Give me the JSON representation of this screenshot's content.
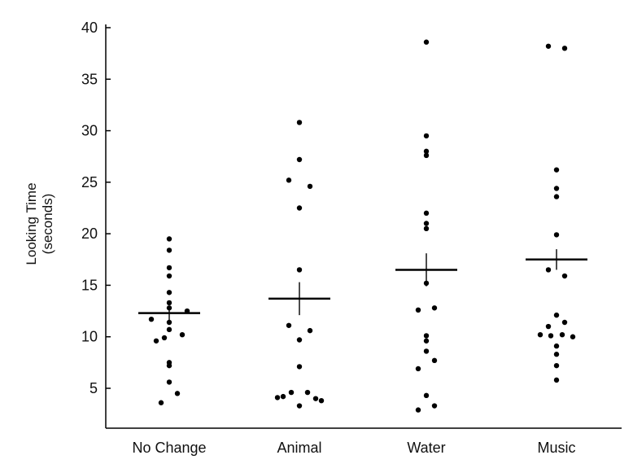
{
  "chart_data": {
    "type": "scatter",
    "title": "",
    "ylabel": "Looking Time",
    "ylabel_unit": "(seconds)",
    "xlabel": "",
    "categories": [
      "No Change",
      "Animal",
      "Water",
      "Music"
    ],
    "ylim": [
      1,
      40.5
    ],
    "yticks": [
      5,
      10,
      15,
      20,
      25,
      30,
      35,
      40
    ],
    "ytick_labels": [
      "5",
      "10",
      "15",
      "20",
      "25",
      "30",
      "35",
      "40"
    ],
    "grid": false,
    "colors": {
      "point": "#000000",
      "axis": "#000000"
    },
    "groups": [
      {
        "category": "No Change",
        "mean": 12.3,
        "sem": 0.7,
        "points": [
          {
            "x_offset": 0.0,
            "y": 19.5
          },
          {
            "x_offset": 0.0,
            "y": 18.4
          },
          {
            "x_offset": 0.0,
            "y": 16.7
          },
          {
            "x_offset": 0.0,
            "y": 15.9
          },
          {
            "x_offset": 0.0,
            "y": 14.3
          },
          {
            "x_offset": 0.0,
            "y": 13.3
          },
          {
            "x_offset": 0.0,
            "y": 12.8
          },
          {
            "x_offset": 0.22,
            "y": 12.5
          },
          {
            "x_offset": -0.22,
            "y": 11.7
          },
          {
            "x_offset": 0.0,
            "y": 11.4
          },
          {
            "x_offset": 0.0,
            "y": 10.7
          },
          {
            "x_offset": 0.16,
            "y": 10.2
          },
          {
            "x_offset": -0.06,
            "y": 9.9
          },
          {
            "x_offset": -0.16,
            "y": 9.6
          },
          {
            "x_offset": 0.0,
            "y": 7.5
          },
          {
            "x_offset": 0.0,
            "y": 7.2
          },
          {
            "x_offset": 0.0,
            "y": 5.6
          },
          {
            "x_offset": 0.1,
            "y": 4.5
          },
          {
            "x_offset": -0.1,
            "y": 3.6
          }
        ]
      },
      {
        "category": "Animal",
        "mean": 13.7,
        "sem": 1.6,
        "points": [
          {
            "x_offset": 0.0,
            "y": 30.8
          },
          {
            "x_offset": 0.0,
            "y": 27.2
          },
          {
            "x_offset": -0.13,
            "y": 25.2
          },
          {
            "x_offset": 0.13,
            "y": 24.6
          },
          {
            "x_offset": 0.0,
            "y": 22.5
          },
          {
            "x_offset": 0.0,
            "y": 16.5
          },
          {
            "x_offset": -0.13,
            "y": 11.1
          },
          {
            "x_offset": 0.13,
            "y": 10.6
          },
          {
            "x_offset": 0.0,
            "y": 9.7
          },
          {
            "x_offset": 0.0,
            "y": 7.1
          },
          {
            "x_offset": -0.1,
            "y": 4.6
          },
          {
            "x_offset": 0.1,
            "y": 4.6
          },
          {
            "x_offset": -0.27,
            "y": 4.1
          },
          {
            "x_offset": -0.2,
            "y": 4.2
          },
          {
            "x_offset": 0.2,
            "y": 4.0
          },
          {
            "x_offset": 0.27,
            "y": 3.8
          },
          {
            "x_offset": 0.0,
            "y": 3.3
          }
        ]
      },
      {
        "category": "Water",
        "mean": 16.5,
        "sem": 1.6,
        "points": [
          {
            "x_offset": 0.0,
            "y": 38.6
          },
          {
            "x_offset": 0.0,
            "y": 29.5
          },
          {
            "x_offset": 0.0,
            "y": 28.0
          },
          {
            "x_offset": 0.0,
            "y": 27.6
          },
          {
            "x_offset": 0.0,
            "y": 22.0
          },
          {
            "x_offset": 0.0,
            "y": 21.0
          },
          {
            "x_offset": 0.0,
            "y": 20.5
          },
          {
            "x_offset": 0.0,
            "y": 15.2
          },
          {
            "x_offset": 0.1,
            "y": 12.8
          },
          {
            "x_offset": -0.1,
            "y": 12.6
          },
          {
            "x_offset": 0.0,
            "y": 10.1
          },
          {
            "x_offset": 0.0,
            "y": 9.6
          },
          {
            "x_offset": 0.0,
            "y": 8.6
          },
          {
            "x_offset": 0.1,
            "y": 7.7
          },
          {
            "x_offset": -0.1,
            "y": 6.9
          },
          {
            "x_offset": 0.0,
            "y": 4.3
          },
          {
            "x_offset": 0.1,
            "y": 3.3
          },
          {
            "x_offset": -0.1,
            "y": 2.9
          }
        ]
      },
      {
        "category": "Music",
        "mean": 17.5,
        "sem": 1.0,
        "points": [
          {
            "x_offset": -0.1,
            "y": 38.2
          },
          {
            "x_offset": 0.1,
            "y": 38.0
          },
          {
            "x_offset": 0.0,
            "y": 26.2
          },
          {
            "x_offset": 0.0,
            "y": 24.4
          },
          {
            "x_offset": 0.0,
            "y": 23.6
          },
          {
            "x_offset": 0.0,
            "y": 19.9
          },
          {
            "x_offset": -0.1,
            "y": 16.5
          },
          {
            "x_offset": 0.1,
            "y": 15.9
          },
          {
            "x_offset": 0.0,
            "y": 12.1
          },
          {
            "x_offset": 0.1,
            "y": 11.4
          },
          {
            "x_offset": -0.1,
            "y": 11.0
          },
          {
            "x_offset": -0.2,
            "y": 10.2
          },
          {
            "x_offset": -0.07,
            "y": 10.1
          },
          {
            "x_offset": 0.07,
            "y": 10.2
          },
          {
            "x_offset": 0.2,
            "y": 10.0
          },
          {
            "x_offset": 0.0,
            "y": 9.1
          },
          {
            "x_offset": 0.0,
            "y": 8.3
          },
          {
            "x_offset": 0.0,
            "y": 7.2
          },
          {
            "x_offset": 0.0,
            "y": 5.8
          }
        ]
      }
    ]
  }
}
